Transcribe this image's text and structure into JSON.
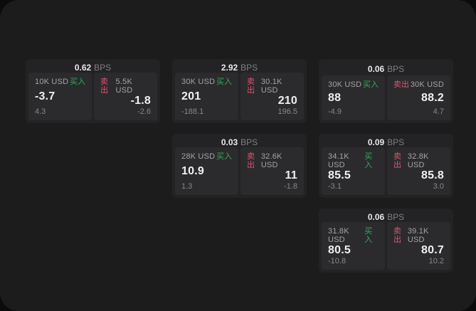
{
  "labels": {
    "bps": "BPS",
    "buy": "买入",
    "sell": "卖出"
  },
  "colors": {
    "app_background": "#1c1c1d",
    "card_background": "#232325",
    "panel_background": "#2b2b2d",
    "buy_green": "#35a95c",
    "sell_red": "#de5470",
    "value_text": "#f0f0f0",
    "muted_text": "#87878a"
  },
  "cards": [
    {
      "col": 1,
      "row": 1,
      "bps": "0.62",
      "buy": {
        "size": "10K USD",
        "value": "-3.7",
        "sub": "4.3"
      },
      "sell": {
        "size": "5.5K USD",
        "value": "-1.8",
        "sub": "-2.6"
      }
    },
    {
      "col": 2,
      "row": 1,
      "bps": "2.92",
      "buy": {
        "size": "30K USD",
        "value": "201",
        "sub": "-188.1"
      },
      "sell": {
        "size": "30.1K USD",
        "value": "210",
        "sub": "196.5"
      }
    },
    {
      "col": 3,
      "row": 1,
      "bps": "0.06",
      "buy": {
        "size": "30K USD",
        "value": "88",
        "sub": "-4.9"
      },
      "sell": {
        "size": "30K USD",
        "value": "88.2",
        "sub": "4.7"
      }
    },
    {
      "col": 2,
      "row": 2,
      "bps": "0.03",
      "buy": {
        "size": "28K USD",
        "value": "10.9",
        "sub": "1.3"
      },
      "sell": {
        "size": "32.6K USD",
        "value": "11",
        "sub": "-1.8"
      }
    },
    {
      "col": 3,
      "row": 2,
      "bps": "0.09",
      "buy": {
        "size": "34.1K USD",
        "value": "85.5",
        "sub": "-3.1"
      },
      "sell": {
        "size": "32.8K USD",
        "value": "85.8",
        "sub": "3.0"
      }
    },
    {
      "col": 3,
      "row": 3,
      "bps": "0.06",
      "buy": {
        "size": "31.8K USD",
        "value": "80.5",
        "sub": "-10.8"
      },
      "sell": {
        "size": "39.1K USD",
        "value": "80.7",
        "sub": "10.2"
      }
    }
  ]
}
